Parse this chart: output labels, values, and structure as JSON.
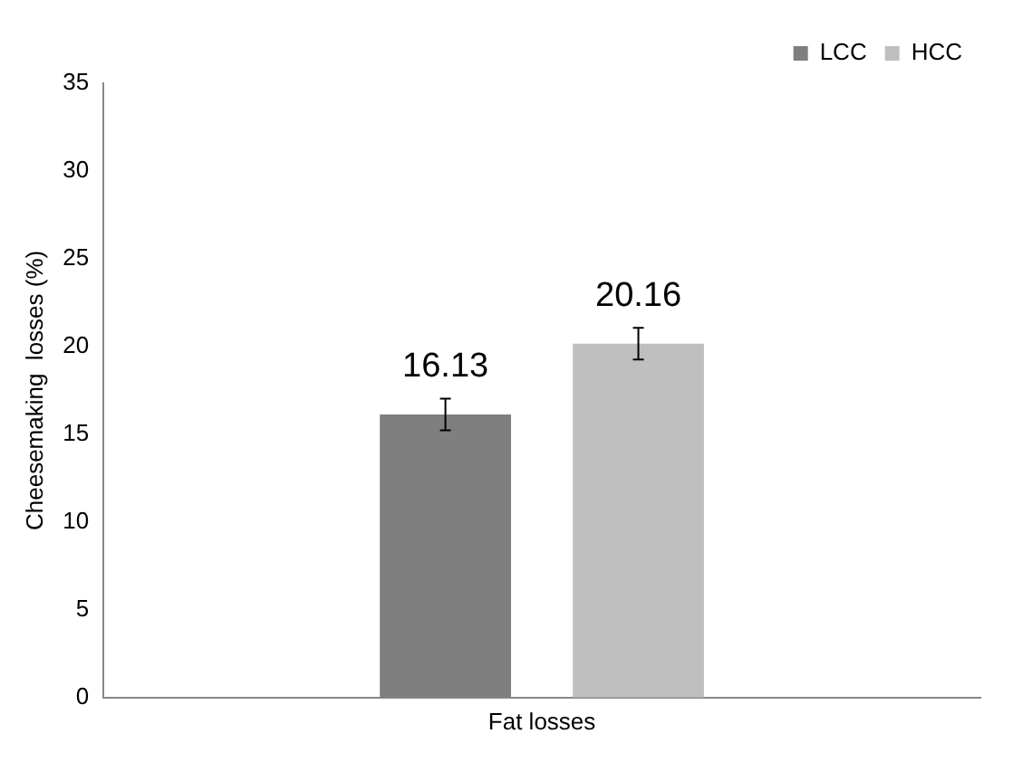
{
  "chart_data": {
    "type": "bar",
    "categories": [
      "Fat losses"
    ],
    "ylabel": "Cheesemaking  losses (%)",
    "series": [
      {
        "name": "LCC",
        "color": "#7f7f7f",
        "values": [
          16.13
        ],
        "errors": [
          0.9
        ]
      },
      {
        "name": "HCC",
        "color": "#bfbfbf",
        "values": [
          20.16
        ],
        "errors": [
          0.9
        ]
      }
    ],
    "ylim": [
      0,
      35
    ],
    "yticks": [
      0,
      5,
      10,
      15,
      20,
      25,
      30,
      35
    ],
    "grid": false,
    "legend": "top right",
    "data_labels": true
  }
}
